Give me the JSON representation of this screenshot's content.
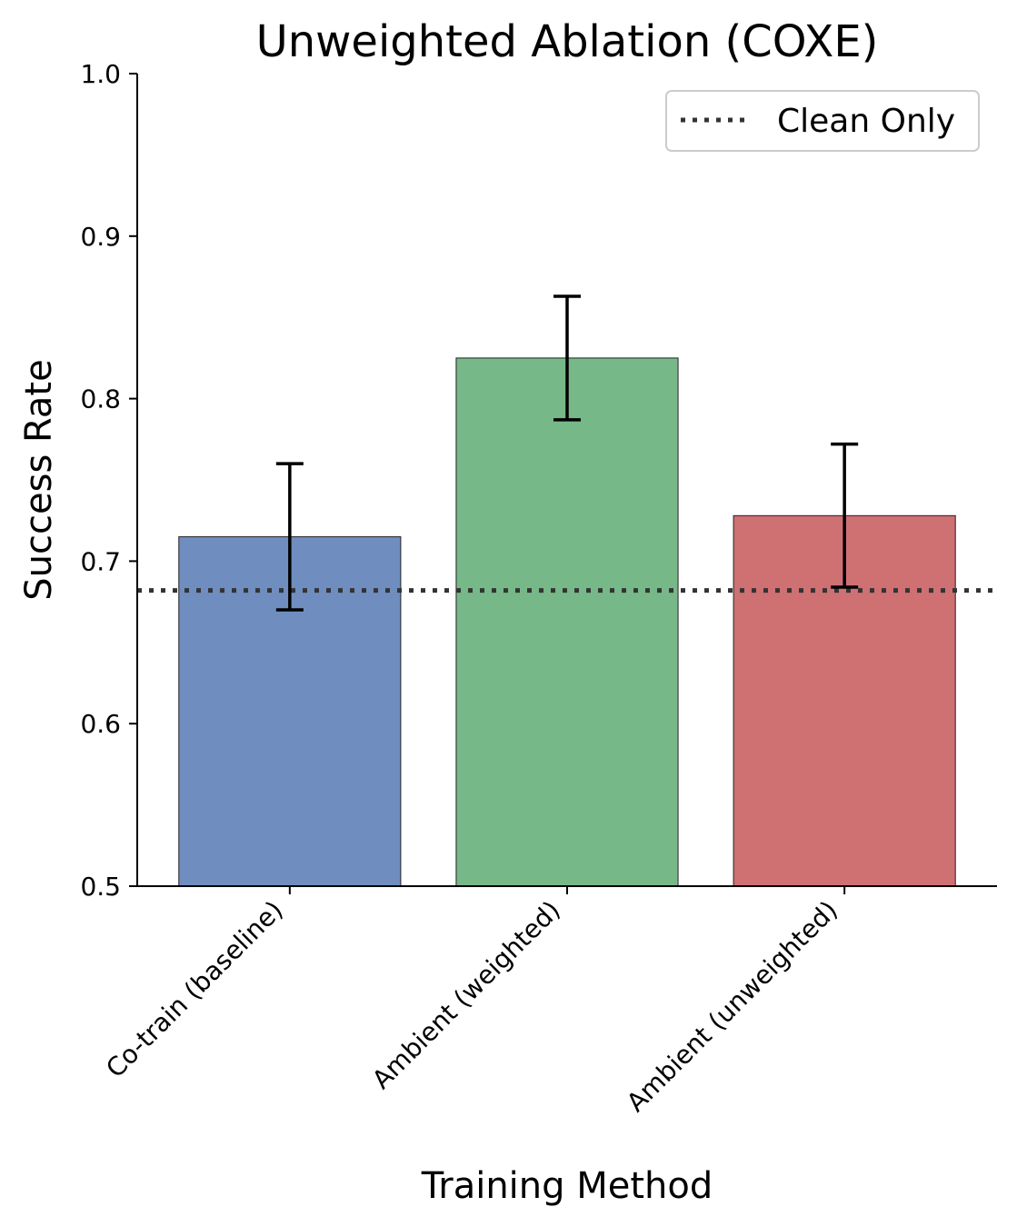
{
  "chart_data": {
    "type": "bar",
    "title": "Unweighted Ablation (COXE)",
    "xlabel": "Training Method",
    "ylabel": "Success Rate",
    "ylim": [
      0.5,
      1.0
    ],
    "yticks": [
      0.5,
      0.6,
      0.7,
      0.8,
      0.9,
      1.0
    ],
    "ytick_labels": [
      "0.5",
      "0.6",
      "0.7",
      "0.8",
      "0.9",
      "1.0"
    ],
    "categories": [
      "Co-train (baseline)",
      "Ambient (weighted)",
      "Ambient (unweighted)"
    ],
    "values": [
      0.715,
      0.825,
      0.728
    ],
    "errors": [
      0.045,
      0.038,
      0.044
    ],
    "colors": [
      "#6f8ebf",
      "#77b888",
      "#cf7073"
    ],
    "reference_line": {
      "label": "Clean Only",
      "value": 0.682,
      "color": "#333333"
    },
    "legend": {
      "position": "top-right",
      "entries": [
        "Clean Only"
      ]
    },
    "grid": false
  }
}
